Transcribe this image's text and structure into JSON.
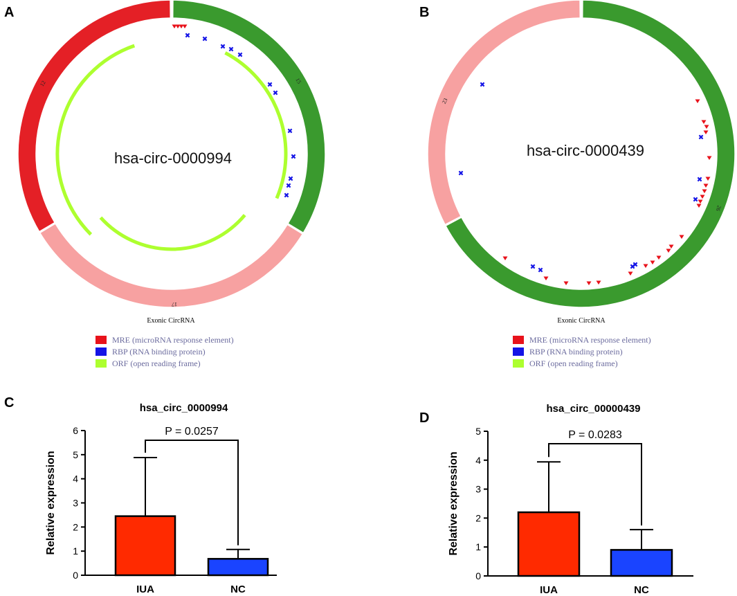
{
  "panels": {
    "a": {
      "letter": "A",
      "center_label": "hsa-circ-0000994",
      "caption": "Exonic CircRNA",
      "segment_labels": [
        "15",
        "17",
        "12"
      ]
    },
    "b": {
      "letter": "B",
      "center_label": "hsa-circ-0000439",
      "caption": "Exonic CircRNA",
      "segment_labels": [
        "23",
        "26"
      ]
    },
    "c": {
      "letter": "C"
    },
    "d": {
      "letter": "D"
    }
  },
  "legend": {
    "items": [
      {
        "label": "MRE (microRNA response element)",
        "color": "#e8121b"
      },
      {
        "label": "RBP (RNA binding protein)",
        "color": "#1414e6"
      },
      {
        "label": "ORF (open reading frame)",
        "color": "#adff2f"
      }
    ]
  },
  "colors": {
    "dark_green": "#3a9a2e",
    "light_red": "#f7a1a1",
    "red": "#e42026",
    "orf": "#adff2f",
    "mre": "#e8121b",
    "rbp": "#1414e6",
    "bar_iua": "#ff2a00",
    "bar_nc": "#1a44ff"
  },
  "chart_data": [
    {
      "type": "bar",
      "title": "hsa_circ_0000994",
      "categories": [
        "IUA",
        "NC"
      ],
      "values": [
        2.45,
        0.68
      ],
      "error_upper": [
        4.88,
        1.07
      ],
      "ylabel": "Relative expression",
      "ylim": [
        0,
        6
      ],
      "yticks": [
        "0",
        "1",
        "2",
        "3",
        "4",
        "5",
        "6"
      ],
      "p_value": "P = 0.0257"
    },
    {
      "type": "bar",
      "title": "hsa_circ_00000439",
      "categories": [
        "IUA",
        "NC"
      ],
      "values": [
        2.2,
        0.9
      ],
      "error_upper": [
        3.94,
        1.6
      ],
      "ylabel": "Relative expression",
      "ylim": [
        0,
        5
      ],
      "yticks": [
        "0",
        "1",
        "2",
        "3",
        "4",
        "5"
      ],
      "p_value": "P = 0.0283"
    }
  ]
}
